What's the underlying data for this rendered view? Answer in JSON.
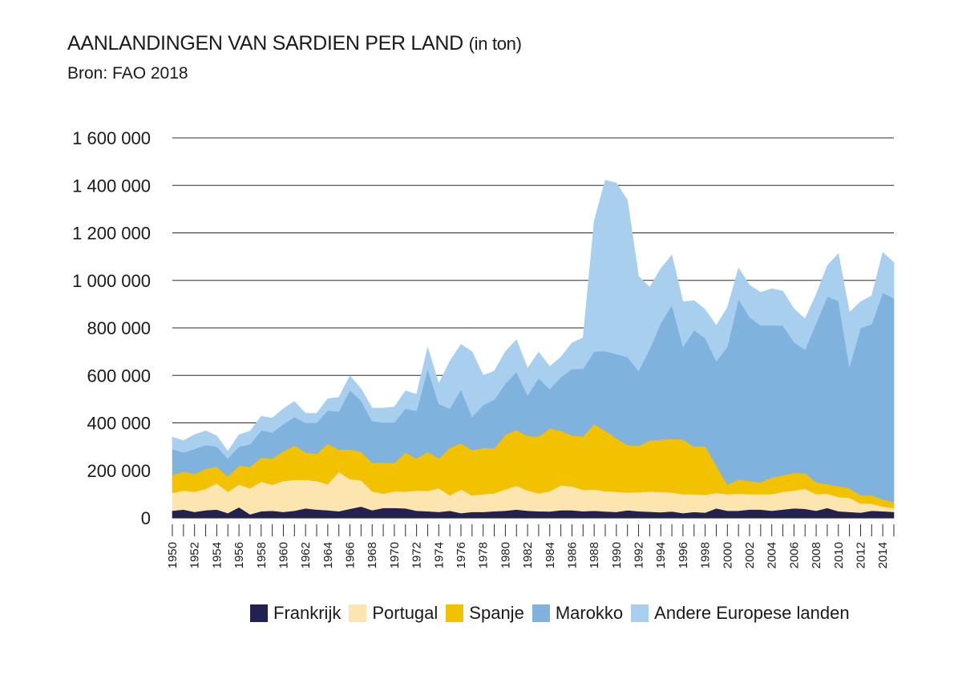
{
  "chart_data": {
    "type": "area",
    "stacked": true,
    "title": "AANLANDINGEN VAN SARDIEN PER LAND",
    "title_unit": "(in ton)",
    "subtitle": "Bron: FAO 2018",
    "xlabel": "",
    "ylabel": "",
    "ylim": [
      0,
      1600000
    ],
    "yticks": [
      0,
      200000,
      400000,
      600000,
      800000,
      1000000,
      1200000,
      1400000,
      1600000
    ],
    "ytick_labels": [
      "0",
      "200 000",
      "400 000",
      "600 000",
      "800 000",
      "1 000 000",
      "1 200 000",
      "1 400 000",
      "1 600 000"
    ],
    "xtick_labels": [
      "1950",
      "1952",
      "1954",
      "1956",
      "1958",
      "1960",
      "1962",
      "1964",
      "1966",
      "1968",
      "1970",
      "1972",
      "1974",
      "1976",
      "1978",
      "1980",
      "1982",
      "1984",
      "1986",
      "1988",
      "1990",
      "1992",
      "1994",
      "1996",
      "1998",
      "2000",
      "2002",
      "2004",
      "2006",
      "2008",
      "2010",
      "2012",
      "2014"
    ],
    "grid": true,
    "legend_position": "bottom-right",
    "x": [
      1950,
      1951,
      1952,
      1953,
      1954,
      1955,
      1956,
      1957,
      1958,
      1959,
      1960,
      1961,
      1962,
      1963,
      1964,
      1965,
      1966,
      1967,
      1968,
      1969,
      1970,
      1971,
      1972,
      1973,
      1974,
      1975,
      1976,
      1977,
      1978,
      1979,
      1980,
      1981,
      1982,
      1983,
      1984,
      1985,
      1986,
      1987,
      1988,
      1989,
      1990,
      1991,
      1992,
      1993,
      1994,
      1995,
      1996,
      1997,
      1998,
      1999,
      2000,
      2001,
      2002,
      2003,
      2004,
      2005,
      2006,
      2007,
      2008,
      2009,
      2010,
      2011,
      2012,
      2013,
      2014,
      2015
    ],
    "series": [
      {
        "name": "Frankrijk",
        "color": "#232150",
        "values": [
          30000,
          35000,
          25000,
          32000,
          35000,
          20000,
          45000,
          15000,
          28000,
          30000,
          25000,
          30000,
          40000,
          35000,
          32000,
          28000,
          38000,
          48000,
          32000,
          42000,
          42000,
          40000,
          30000,
          28000,
          25000,
          30000,
          20000,
          25000,
          25000,
          28000,
          30000,
          35000,
          30000,
          28000,
          27000,
          32000,
          32000,
          28000,
          30000,
          27000,
          25000,
          32000,
          28000,
          26000,
          24000,
          27000,
          20000,
          25000,
          22000,
          40000,
          30000,
          30000,
          35000,
          35000,
          30000,
          35000,
          40000,
          38000,
          30000,
          42000,
          28000,
          25000,
          22000,
          30000,
          28000,
          25000
        ]
      },
      {
        "name": "Portugal",
        "color": "#fce5ae",
        "values": [
          75000,
          80000,
          85000,
          90000,
          110000,
          90000,
          95000,
          110000,
          125000,
          110000,
          130000,
          130000,
          120000,
          120000,
          110000,
          165000,
          125000,
          110000,
          80000,
          60000,
          70000,
          70000,
          85000,
          85000,
          100000,
          65000,
          100000,
          70000,
          75000,
          75000,
          90000,
          100000,
          85000,
          75000,
          85000,
          105000,
          100000,
          90000,
          90000,
          85000,
          85000,
          75000,
          80000,
          85000,
          85000,
          80000,
          80000,
          75000,
          75000,
          65000,
          70000,
          72000,
          65000,
          65000,
          70000,
          75000,
          75000,
          85000,
          70000,
          60000,
          60000,
          60000,
          38000,
          30000,
          20000,
          15000
        ]
      },
      {
        "name": "Spanje",
        "color": "#f2c100",
        "values": [
          75000,
          80000,
          75000,
          85000,
          70000,
          65000,
          80000,
          90000,
          100000,
          110000,
          125000,
          145000,
          115000,
          115000,
          170000,
          95000,
          125000,
          120000,
          120000,
          130000,
          120000,
          165000,
          135000,
          165000,
          125000,
          200000,
          195000,
          190000,
          195000,
          190000,
          230000,
          235000,
          230000,
          240000,
          265000,
          230000,
          215000,
          225000,
          275000,
          255000,
          225000,
          200000,
          195000,
          215000,
          220000,
          225000,
          230000,
          200000,
          205000,
          115000,
          40000,
          60000,
          55000,
          50000,
          70000,
          70000,
          75000,
          65000,
          50000,
          40000,
          45000,
          40000,
          35000,
          35000,
          30000,
          25000
        ]
      },
      {
        "name": "Marokko",
        "color": "#7fb2dc",
        "values": [
          110000,
          80000,
          105000,
          100000,
          85000,
          75000,
          80000,
          95000,
          115000,
          110000,
          115000,
          120000,
          125000,
          130000,
          140000,
          160000,
          250000,
          215000,
          175000,
          170000,
          170000,
          185000,
          200000,
          350000,
          230000,
          165000,
          225000,
          140000,
          180000,
          205000,
          215000,
          245000,
          170000,
          245000,
          165000,
          225000,
          280000,
          285000,
          305000,
          335000,
          355000,
          370000,
          315000,
          385000,
          490000,
          565000,
          390000,
          490000,
          455000,
          440000,
          580000,
          760000,
          690000,
          660000,
          640000,
          630000,
          550000,
          520000,
          670000,
          790000,
          780000,
          510000,
          705000,
          720000,
          870000,
          860000
        ]
      },
      {
        "name": "Andere Europese landen",
        "color": "#a9cfef",
        "values": [
          50000,
          50000,
          60000,
          60000,
          45000,
          30000,
          50000,
          55000,
          60000,
          60000,
          65000,
          65000,
          40000,
          40000,
          50000,
          60000,
          60000,
          50000,
          55000,
          60000,
          65000,
          75000,
          70000,
          90000,
          85000,
          200000,
          190000,
          275000,
          125000,
          120000,
          135000,
          135000,
          115000,
          110000,
          95000,
          85000,
          110000,
          130000,
          550000,
          720000,
          720000,
          660000,
          400000,
          260000,
          230000,
          210000,
          190000,
          125000,
          120000,
          150000,
          165000,
          130000,
          135000,
          140000,
          155000,
          145000,
          140000,
          130000,
          120000,
          130000,
          200000,
          230000,
          110000,
          120000,
          170000,
          150000
        ]
      }
    ]
  }
}
